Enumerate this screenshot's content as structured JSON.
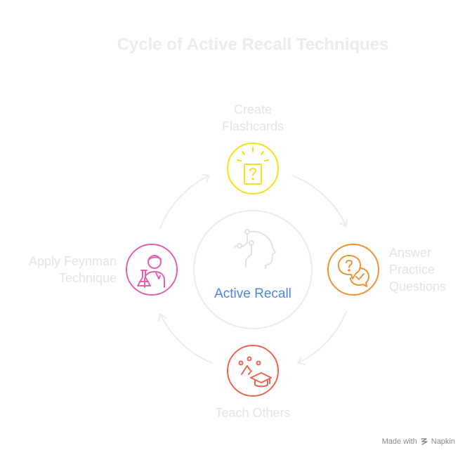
{
  "title": "Cycle of Active Recall Techniques",
  "center": {
    "label": "Active Recall",
    "icon": "brain-network-icon"
  },
  "steps": [
    {
      "lines": [
        "Create",
        "Flashcards"
      ],
      "icon": "question-card-icon",
      "color": "#f5e11a"
    },
    {
      "lines": [
        "Answer",
        "Practice",
        "Questions"
      ],
      "icon": "speech-bubbles-icon",
      "color": "#ef9231"
    },
    {
      "lines": [
        "Teach Others"
      ],
      "icon": "graduation-cap-icon",
      "color": "#ef6352"
    },
    {
      "lines": [
        "Apply Feynman",
        "Technique"
      ],
      "icon": "scientist-icon",
      "color": "#e561ae"
    }
  ],
  "footer": {
    "made_with": "Made with",
    "brand": "Napkin"
  }
}
